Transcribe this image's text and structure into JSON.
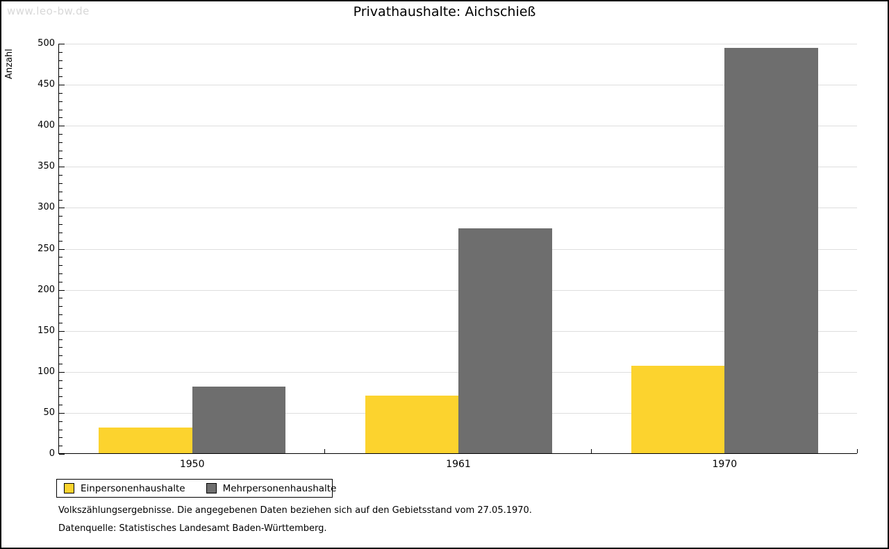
{
  "watermark": "www.leo-bw.de",
  "title": "Privathaushalte: Aichschieß",
  "chart_data": {
    "type": "bar",
    "categories": [
      "1950",
      "1961",
      "1970"
    ],
    "series": [
      {
        "name": "Einpersonenhaushalte",
        "color": "#fcd32e",
        "values": [
          31,
          70,
          107
        ]
      },
      {
        "name": "Mehrpersonenhaushalte",
        "color": "#6e6e6e",
        "values": [
          81,
          274,
          494
        ]
      }
    ],
    "xlabel": "",
    "ylabel": "Anzahl",
    "ylim": [
      0,
      500
    ],
    "ytick_step": 50,
    "minor_tick_step": 10,
    "grid": true,
    "legend_position": "bottom-left"
  },
  "footer": {
    "line1": "Volkszählungsergebnisse. Die angegebenen Daten beziehen sich auf den Gebietsstand vom 27.05.1970.",
    "line2": "Datenquelle: Statistisches Landesamt Baden-Württemberg."
  },
  "colors": {
    "grid": "#dedede",
    "axis": "#000000",
    "watermark": "#d8d8d8",
    "series_yellow": "#fcd32e",
    "series_gray": "#6e6e6e"
  }
}
